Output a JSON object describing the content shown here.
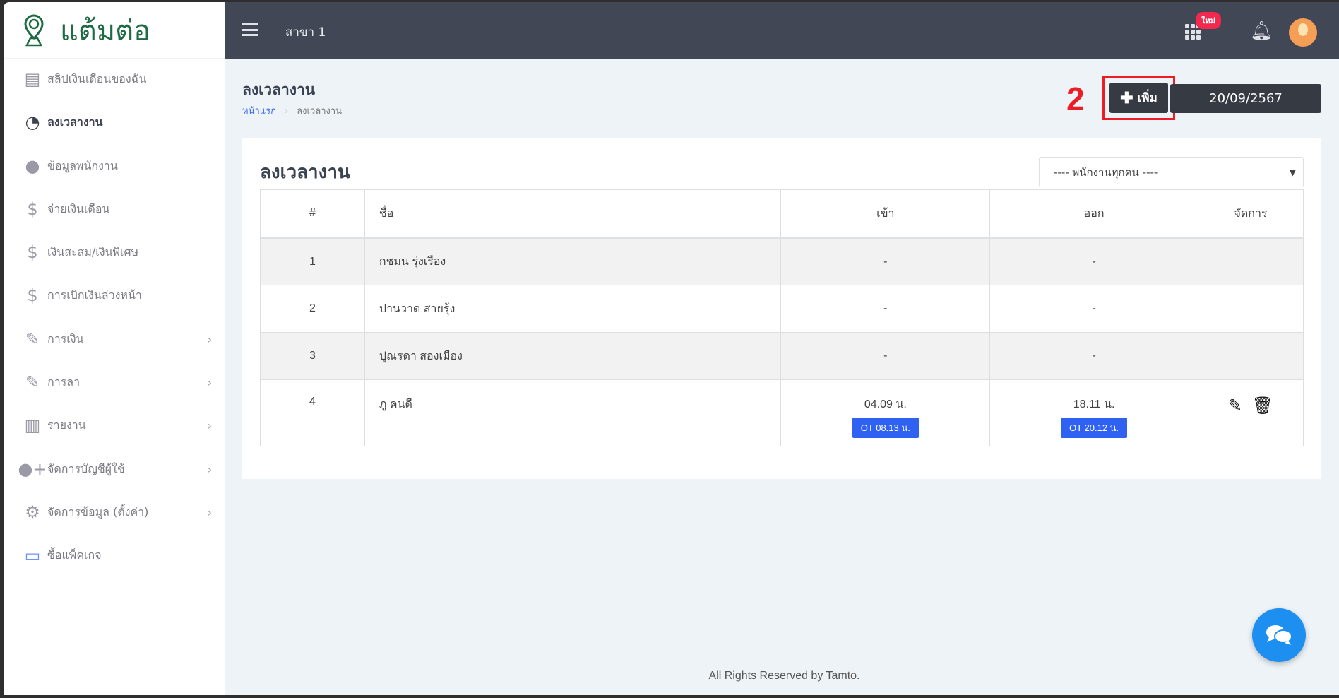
{
  "brand": {
    "name": "แต้มต่อ"
  },
  "sidebar": {
    "items": [
      {
        "label": "สลิปเงินเดือนของฉัน",
        "icon": "document-icon"
      },
      {
        "label": "ลงเวลางาน",
        "icon": "clock-icon",
        "active": true
      },
      {
        "label": "ข้อมูลพนักงาน",
        "icon": "user-icon"
      },
      {
        "label": "จ่ายเงินเดือน",
        "icon": "money-icon"
      },
      {
        "label": "เงินสะสม/เงินพิเศษ",
        "icon": "money-icon"
      },
      {
        "label": "การเบิกเงินล่วงหน้า",
        "icon": "money-icon"
      },
      {
        "label": "การเงิน",
        "icon": "edit-icon",
        "submenu": true
      },
      {
        "label": "การลา",
        "icon": "edit-icon",
        "submenu": true
      },
      {
        "label": "รายงาน",
        "icon": "bar-chart-icon",
        "submenu": true
      },
      {
        "label": "จัดการบัญชีผู้ใช้",
        "icon": "user-plus-icon",
        "submenu": true
      },
      {
        "label": "จัดการข้อมูล (ตั้งค่า)",
        "icon": "gears-icon",
        "submenu": true
      },
      {
        "label": "ซื้อแพ็คเกจ",
        "icon": "credit-card-icon"
      }
    ]
  },
  "topbar": {
    "branch": "สาขา 1",
    "badge": "ใหม่"
  },
  "page": {
    "title": "ลงเวลางาน",
    "breadcrumb": [
      "หน้าแรก",
      "ลงเวลางาน"
    ],
    "annotation": "2",
    "add_label": "เพิ่ม",
    "date": "20/09/2567"
  },
  "card": {
    "title": "ลงเวลางาน",
    "select_value": "---- พนักงานทุกคน ----"
  },
  "table": {
    "headers": [
      "#",
      "ชื่อ",
      "เข้า",
      "ออก",
      "จัดการ"
    ],
    "rows": [
      {
        "no": "1",
        "name": "กชมน รุ่งเรือง",
        "in": "-",
        "out": "-"
      },
      {
        "no": "2",
        "name": "ปานวาด สายรุ้ง",
        "in": "-",
        "out": "-"
      },
      {
        "no": "3",
        "name": "ปุณรดา สองเมือง",
        "in": "-",
        "out": "-"
      },
      {
        "no": "4",
        "name": "ภู คนดี",
        "in": "04.09 น.",
        "in_ot": "OT 08.13 น.",
        "out": "18.11 น.",
        "out_ot": "OT 20.12 น."
      }
    ]
  },
  "footer": "All Rights Reserved by Tamto.",
  "colors": {
    "topbar": "#424756",
    "brand": "#1e6b44",
    "accent": "#2f62f2",
    "annotation": "#ee1c25",
    "chat": "#1d8ff0"
  }
}
